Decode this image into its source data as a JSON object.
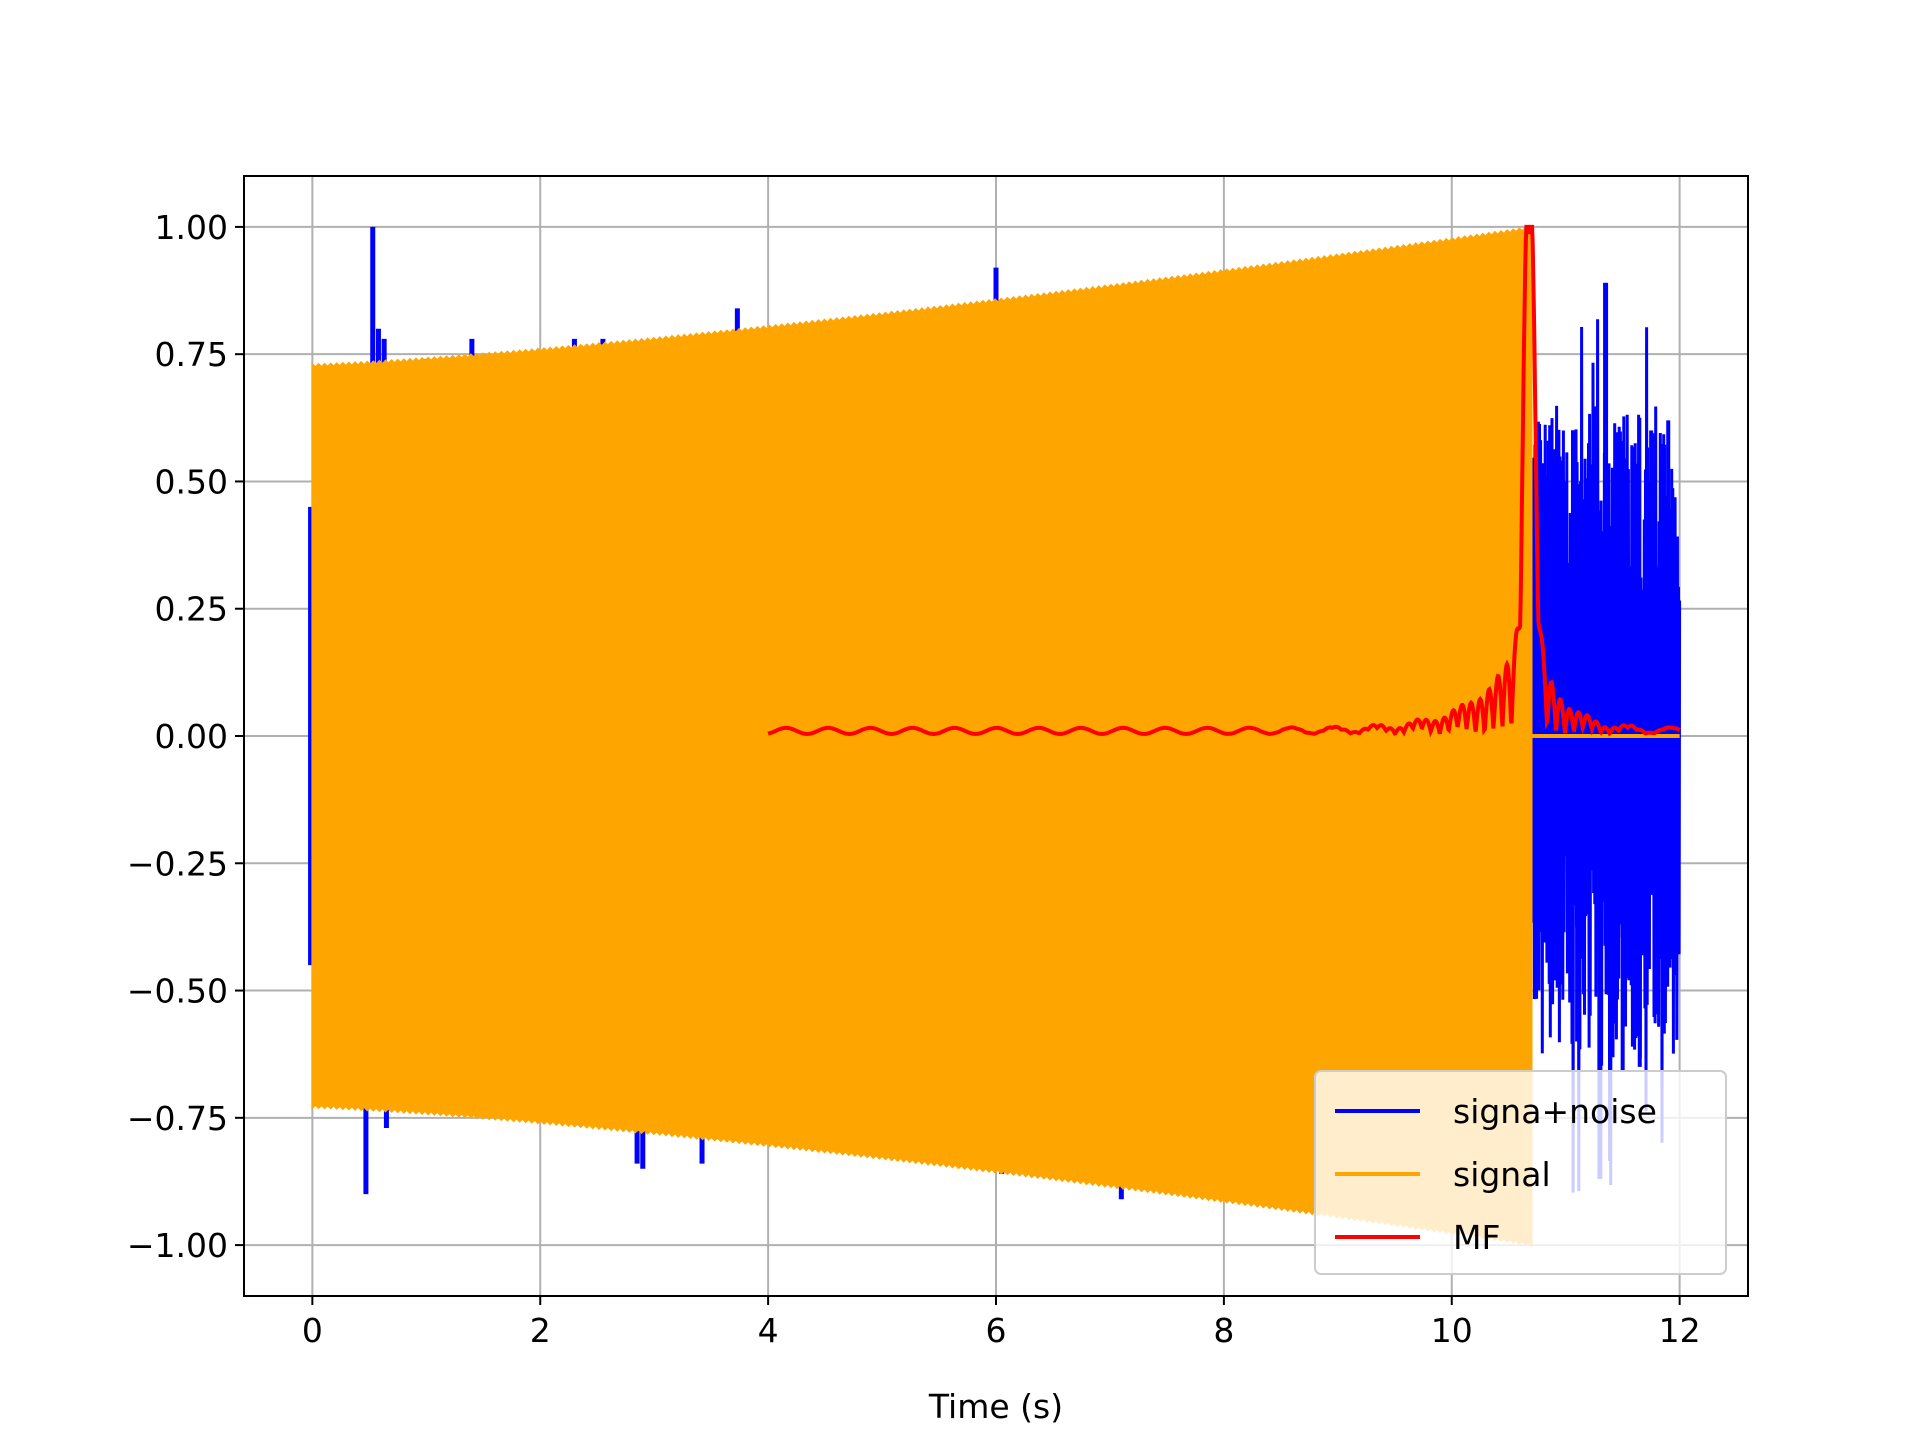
{
  "chart_data": {
    "type": "line",
    "title": "",
    "xlabel": "Time (s)",
    "ylabel": "",
    "xlim": [
      -0.6,
      12.6
    ],
    "ylim": [
      -1.1,
      1.1
    ],
    "grid": true,
    "legend_position": "lower-right",
    "x_ticks": [
      0,
      2,
      4,
      6,
      8,
      10,
      12
    ],
    "x_tick_labels": [
      "0",
      "2",
      "4",
      "6",
      "8",
      "10",
      "12"
    ],
    "y_ticks": [
      1.0,
      0.75,
      0.5,
      0.25,
      0.0,
      -0.25,
      -0.5,
      -0.75,
      -1.0
    ],
    "y_tick_labels": [
      "1.00",
      "0.75",
      "0.50",
      "0.25",
      "0.00",
      "−0.25",
      "−0.50",
      "−0.75",
      "−1.00"
    ],
    "series": [
      {
        "name": "signa+noise",
        "color": "#0000ff",
        "kind": "noisy-chirp",
        "x_range": [
          0,
          12
        ],
        "spikes": [
          {
            "x": 0.53,
            "y": 1.0
          },
          {
            "x": 0.47,
            "y": -0.9
          },
          {
            "x": 0.58,
            "y": 0.8
          },
          {
            "x": 0.63,
            "y": 0.78
          },
          {
            "x": 0.65,
            "y": -0.77
          },
          {
            "x": 0.98,
            "y": 0.74
          },
          {
            "x": 1.4,
            "y": 0.78
          },
          {
            "x": 2.3,
            "y": 0.78
          },
          {
            "x": 2.55,
            "y": 0.78
          },
          {
            "x": 2.85,
            "y": -0.84
          },
          {
            "x": 2.9,
            "y": -0.85
          },
          {
            "x": 3.42,
            "y": -0.84
          },
          {
            "x": 3.73,
            "y": 0.84
          },
          {
            "x": 5.35,
            "y": 0.82
          },
          {
            "x": 6.0,
            "y": 0.92
          },
          {
            "x": 6.05,
            "y": -0.86
          },
          {
            "x": 6.3,
            "y": 0.84
          },
          {
            "x": 7.1,
            "y": -0.91
          },
          {
            "x": 11.35,
            "y": 0.89
          },
          {
            "x": 11.3,
            "y": -0.87
          }
        ],
        "tail_amplitude": 0.65
      },
      {
        "name": "signal",
        "color": "#ffa500",
        "kind": "chirp-envelope",
        "x_range": [
          0,
          10.7
        ],
        "amplitude_start": 0.73,
        "amplitude_end": 1.0,
        "flat_after": [
          10.7,
          12.0
        ]
      },
      {
        "name": "MF",
        "color": "#ff0000",
        "kind": "matched-filter",
        "x_range": [
          4.0,
          12.0
        ],
        "peak_x": 10.68,
        "peak_y": 1.0,
        "baseline": 0.01
      }
    ]
  }
}
